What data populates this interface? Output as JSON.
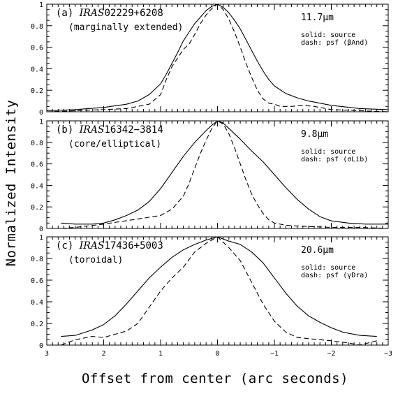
{
  "chart_data": {
    "type": "line",
    "xlabel": "Offset from center (arc seconds)",
    "ylabel": "Normalized Intensity",
    "xlim": [
      3,
      -3
    ],
    "ylim": [
      0,
      1
    ],
    "xticks": [
      3,
      2,
      1,
      0,
      -1,
      -2,
      -3
    ],
    "xtick_labels": [
      "3",
      "2",
      "1",
      "0",
      "−1",
      "−2",
      "−3"
    ],
    "yticks": [
      0,
      0.2,
      0.4,
      0.6,
      0.8,
      1
    ],
    "ytick_labels": [
      "0",
      "0.2",
      "0.4",
      "0.6",
      "0.8",
      "1"
    ],
    "grid": false,
    "panels": [
      {
        "label_prefix": "(a) ",
        "label_name": "IRAS",
        "label_id": "02229+6208",
        "sublabel": "(marginally extended)",
        "wavelength": "11.7μm",
        "legend_solid": "solid: source",
        "legend_dash": "dash: psf (βAnd)",
        "series": [
          {
            "style": "solid",
            "x": [
              3.0,
              2.5,
              2.0,
              1.6,
              1.4,
              1.2,
              1.0,
              0.9,
              0.8,
              0.7,
              0.6,
              0.5,
              0.4,
              0.3,
              0.2,
              0.1,
              0.0,
              -0.1,
              -0.2,
              -0.3,
              -0.4,
              -0.5,
              -0.6,
              -0.7,
              -0.8,
              -0.9,
              -1.0,
              -1.2,
              -1.4,
              -1.6,
              -2.0,
              -2.5,
              -3.0
            ],
            "y": [
              0.01,
              0.02,
              0.04,
              0.07,
              0.1,
              0.16,
              0.26,
              0.35,
              0.45,
              0.55,
              0.66,
              0.74,
              0.82,
              0.88,
              0.94,
              0.98,
              1.0,
              0.97,
              0.92,
              0.85,
              0.77,
              0.67,
              0.57,
              0.47,
              0.38,
              0.3,
              0.24,
              0.17,
              0.13,
              0.1,
              0.06,
              0.03,
              0.02
            ]
          },
          {
            "style": "dashed",
            "x": [
              3.0,
              2.5,
              2.0,
              1.6,
              1.2,
              1.0,
              0.9,
              0.8,
              0.7,
              0.6,
              0.5,
              0.4,
              0.3,
              0.2,
              0.1,
              0.0,
              -0.1,
              -0.2,
              -0.3,
              -0.4,
              -0.5,
              -0.6,
              -0.7,
              -0.8,
              -0.9,
              -1.0,
              -1.1,
              -1.3,
              -1.5,
              -1.7,
              -2.0,
              -2.5,
              -3.0
            ],
            "y": [
              0.0,
              0.01,
              0.02,
              0.03,
              0.07,
              0.16,
              0.3,
              0.42,
              0.5,
              0.58,
              0.63,
              0.72,
              0.82,
              0.9,
              0.96,
              1.0,
              0.95,
              0.86,
              0.74,
              0.6,
              0.45,
              0.32,
              0.2,
              0.12,
              0.08,
              0.07,
              0.05,
              0.05,
              0.06,
              0.05,
              0.02,
              0.01,
              0.0
            ]
          }
        ]
      },
      {
        "label_prefix": "(b) ",
        "label_name": "IRAS",
        "label_id": "16342−3814",
        "sublabel": "(core/elliptical)",
        "wavelength": "9.8μm",
        "legend_solid": "solid: source",
        "legend_dash": "dash: psf (σLib)",
        "series": [
          {
            "style": "solid",
            "x": [
              2.75,
              2.5,
              2.2,
              2.0,
              1.8,
              1.6,
              1.4,
              1.2,
              1.0,
              0.8,
              0.6,
              0.4,
              0.2,
              0.1,
              0.0,
              -0.1,
              -0.2,
              -0.4,
              -0.6,
              -0.8,
              -1.0,
              -1.2,
              -1.4,
              -1.6,
              -1.8,
              -2.0,
              -2.3,
              -2.6,
              -3.0
            ],
            "y": [
              0.05,
              0.04,
              0.04,
              0.05,
              0.08,
              0.12,
              0.17,
              0.25,
              0.37,
              0.52,
              0.67,
              0.8,
              0.91,
              0.96,
              1.0,
              0.98,
              0.93,
              0.83,
              0.72,
              0.62,
              0.5,
              0.38,
              0.27,
              0.18,
              0.11,
              0.07,
              0.05,
              0.04,
              0.04
            ]
          },
          {
            "style": "dashed",
            "x": [
              2.75,
              2.5,
              2.0,
              1.5,
              1.0,
              0.8,
              0.6,
              0.5,
              0.4,
              0.3,
              0.2,
              0.1,
              0.0,
              -0.1,
              -0.2,
              -0.3,
              -0.4,
              -0.5,
              -0.6,
              -0.7,
              -0.8,
              -0.9,
              -1.0,
              -1.2,
              -1.5,
              -2.0,
              -2.5,
              -3.0
            ],
            "y": [
              0.0,
              0.01,
              0.04,
              0.08,
              0.12,
              0.18,
              0.3,
              0.42,
              0.56,
              0.7,
              0.82,
              0.93,
              1.0,
              0.97,
              0.88,
              0.75,
              0.6,
              0.45,
              0.32,
              0.22,
              0.14,
              0.08,
              0.05,
              0.03,
              0.02,
              0.01,
              0.01,
              0.0
            ]
          }
        ]
      },
      {
        "label_prefix": "(c) ",
        "label_name": "IRAS",
        "label_id": "17436+5003",
        "sublabel": "(toroidal)",
        "wavelength": "20.6μm",
        "legend_solid": "solid: source",
        "legend_dash": "dash: psf (γDra)",
        "series": [
          {
            "style": "solid",
            "x": [
              2.75,
              2.5,
              2.2,
              2.0,
              1.8,
              1.6,
              1.4,
              1.2,
              1.0,
              0.8,
              0.6,
              0.4,
              0.2,
              0.0,
              -0.2,
              -0.4,
              -0.6,
              -0.8,
              -1.0,
              -1.2,
              -1.4,
              -1.6,
              -1.8,
              -2.0,
              -2.2,
              -2.5,
              -2.8
            ],
            "y": [
              0.08,
              0.09,
              0.14,
              0.19,
              0.27,
              0.38,
              0.5,
              0.62,
              0.72,
              0.81,
              0.88,
              0.93,
              0.97,
              1.0,
              0.96,
              0.93,
              0.86,
              0.76,
              0.62,
              0.48,
              0.36,
              0.27,
              0.21,
              0.16,
              0.12,
              0.09,
              0.08
            ]
          },
          {
            "style": "dashed",
            "x": [
              2.75,
              2.5,
              2.2,
              2.0,
              1.8,
              1.6,
              1.4,
              1.2,
              1.0,
              0.8,
              0.6,
              0.4,
              0.2,
              0.0,
              -0.2,
              -0.4,
              -0.6,
              -0.8,
              -1.0,
              -1.2,
              -1.4,
              -1.6,
              -1.8,
              -2.0,
              -2.3,
              -2.5,
              -2.8
            ],
            "y": [
              0.0,
              0.05,
              0.08,
              0.07,
              0.1,
              0.13,
              0.2,
              0.35,
              0.5,
              0.62,
              0.72,
              0.86,
              0.94,
              1.0,
              0.9,
              0.78,
              0.58,
              0.38,
              0.22,
              0.12,
              0.07,
              0.06,
              0.05,
              0.04,
              0.02,
              0.0,
              0.04
            ]
          }
        ]
      }
    ]
  }
}
